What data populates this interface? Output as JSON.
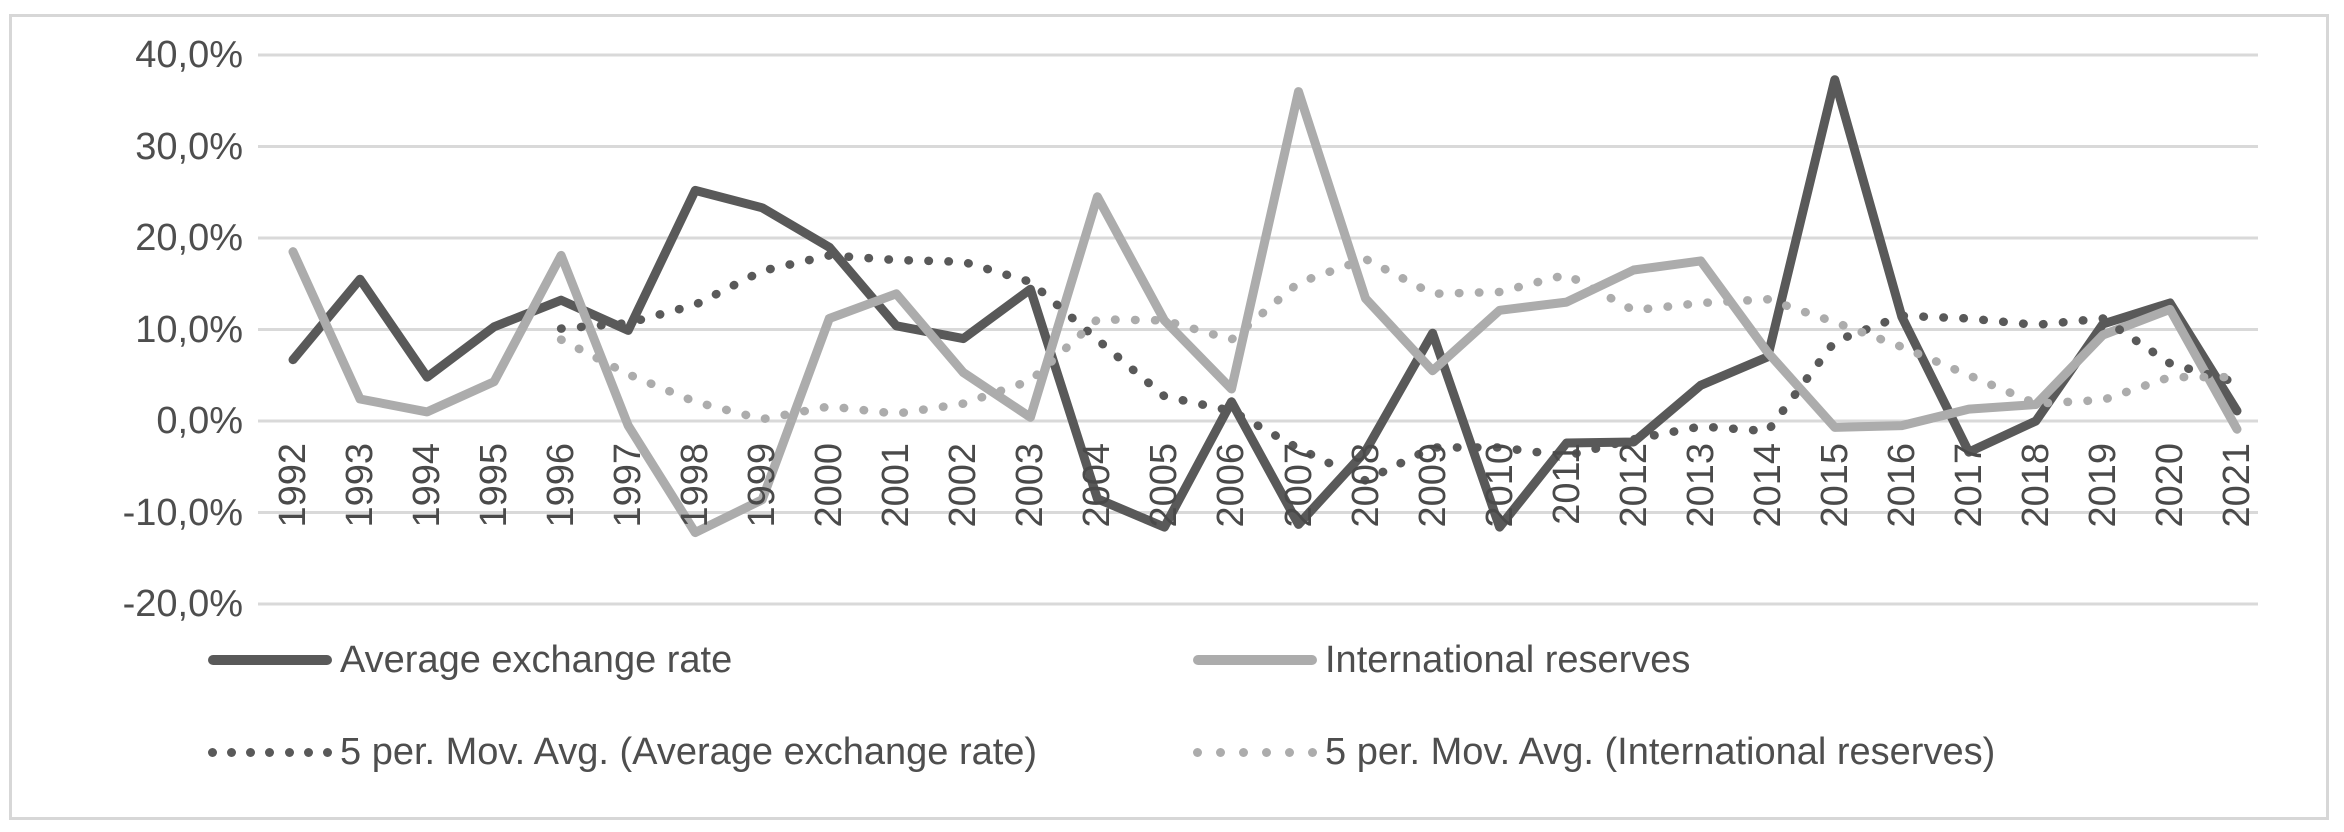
{
  "chart_data": {
    "type": "line",
    "title": "",
    "xlabel": "",
    "ylabel": "",
    "grid": "horizontal",
    "legend_position": "bottom",
    "x_tick_labels": [
      "1992",
      "1993",
      "1994",
      "1995",
      "1996",
      "1997",
      "1998",
      "1999",
      "2000",
      "2001",
      "2002",
      "2003",
      "2004",
      "2005",
      "2006",
      "2007",
      "2008",
      "2009",
      "2010",
      "2011",
      "2012",
      "2013",
      "2014",
      "2015",
      "2016",
      "2017",
      "2018",
      "2019",
      "2020",
      "2021"
    ],
    "y_axis": {
      "unit": "%",
      "decimal_separator": ",",
      "min": -20,
      "max": 40,
      "tick_values": [
        40,
        30,
        20,
        10,
        0,
        -10,
        -20
      ],
      "tick_labels": [
        "40,0%",
        "30,0%",
        "20,0%",
        "10,0%",
        "0,0%",
        "-10,0%",
        "-20,0%"
      ]
    },
    "series": [
      {
        "name": "Average exchange rate",
        "style": "solid",
        "color": "#595959",
        "values": [
          6.7,
          15.5,
          4.8,
          10.3,
          13.2,
          9.9,
          25.2,
          23.3,
          19.0,
          10.4,
          9.0,
          14.4,
          -8.5,
          -11.6,
          2.1,
          -11.3,
          -3.3,
          9.6,
          -11.6,
          -2.4,
          -2.3,
          3.9,
          7.0,
          37.3,
          11.4,
          -3.4,
          0.0,
          10.6,
          12.9,
          1.1
        ]
      },
      {
        "name": "International reserves",
        "style": "solid",
        "color": "#acacac",
        "values": [
          18.5,
          2.4,
          1.0,
          4.3,
          18.1,
          -0.5,
          -12.2,
          -8.6,
          11.2,
          13.9,
          5.3,
          0.4,
          24.5,
          11.0,
          3.5,
          36.0,
          13.4,
          5.5,
          12.1,
          13.0,
          16.5,
          17.5,
          7.5,
          -0.7,
          -0.5,
          1.3,
          1.8,
          9.4,
          12.2,
          -0.9
        ]
      },
      {
        "name": "5 per. Mov. Avg. (Average exchange rate)",
        "style": "dotted",
        "color": "#595959",
        "values": [
          null,
          null,
          null,
          null,
          10.1,
          10.7,
          12.7,
          16.4,
          18.1,
          17.6,
          17.4,
          15.2,
          8.9,
          2.7,
          1.1,
          -3.0,
          -6.5,
          -2.9,
          -2.9,
          -3.8,
          -2.0,
          -0.6,
          -1.1,
          8.7,
          11.5,
          11.2,
          10.5,
          11.2,
          6.3,
          4.2
        ]
      },
      {
        "name": "5 per. Mov. Avg. (International reserves)",
        "style": "dotted",
        "color": "#acacac",
        "values": [
          null,
          null,
          null,
          null,
          8.9,
          5.1,
          2.1,
          0.2,
          1.6,
          0.8,
          1.9,
          4.4,
          11.1,
          11.0,
          8.9,
          15.1,
          17.7,
          13.9,
          14.1,
          16.0,
          12.1,
          12.9,
          13.3,
          10.8,
          8.1,
          5.0,
          1.9,
          2.3,
          4.8,
          4.8
        ]
      }
    ]
  },
  "colors": {
    "background": "#ffffff",
    "frame_border": "#d7d7d7",
    "gridline": "#d9d9d9",
    "axis_text": "#4e4e4e",
    "series_dark": "#595959",
    "series_light": "#acacac"
  }
}
